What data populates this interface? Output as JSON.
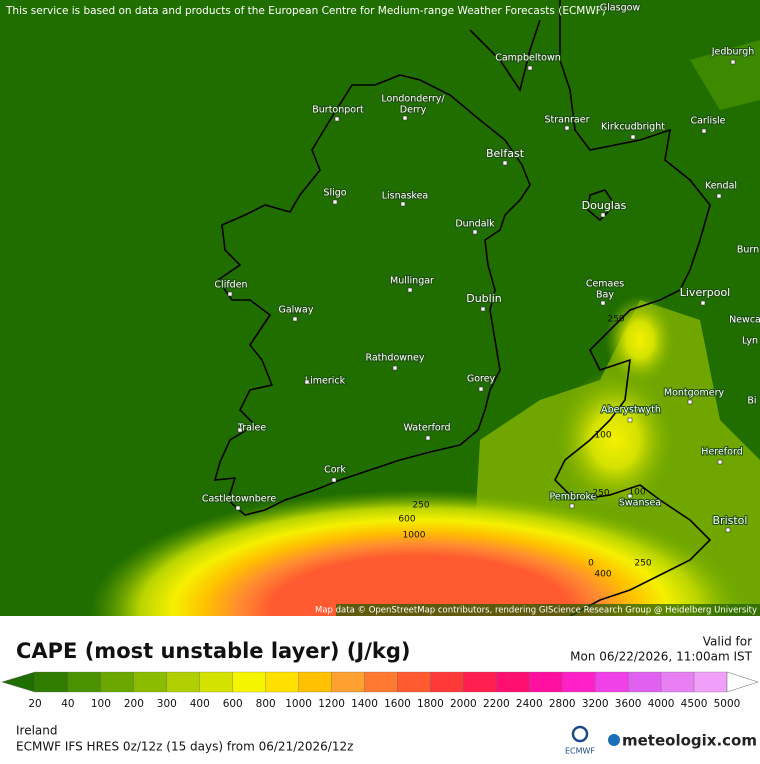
{
  "header": {
    "notice": "This service is based on data and products of the European Centre for Medium-range Weather Forecasts (ECMWF)"
  },
  "map": {
    "attribution": "Map data © OpenStreetMap contributors, rendering GIScience Research Group @ Heidelberg University",
    "cities": [
      "Glasgow",
      "Campbeltown",
      "Jedburgh",
      "Londonderry/",
      "Derry",
      "Burtonport",
      "Stranraer",
      "Kirkcudbright",
      "Carlisle",
      "Belfast",
      "Sligo",
      "Lisnaskea",
      "Kendal",
      "Douglas",
      "Dundalk",
      "Burn",
      "Clifden",
      "Mullingar",
      "Cemaes",
      "Bay",
      "Liverpool",
      "Galway",
      "Dublin",
      "Newca",
      "Lyn",
      "Rathdowney",
      "Limerick",
      "Gorey",
      "Montgomery",
      "Bi",
      "Aberystwyth",
      "Tralee",
      "Waterford",
      "Hereford",
      "Cork",
      "Pembroke",
      "Swansea",
      "Castletownbere",
      "Bristol"
    ],
    "contour_labels": [
      "250",
      "100",
      "100",
      "250",
      "250",
      "600",
      "1000",
      "0",
      "400",
      "250"
    ]
  },
  "panel": {
    "title": "CAPE (most unstable layer) (J/kg)",
    "valid_label": "Valid for",
    "valid_time": "Mon 06/22/2026, 11:00am IST",
    "region": "Ireland",
    "model_run": "ECMWF IFS HRES 0z/12z (15 days) from 06/21/2026/12z",
    "logo_ecmwf": "ECMWF",
    "logo_meteologix": "meteologix.com",
    "scale_labels": [
      20,
      40,
      100,
      200,
      300,
      400,
      600,
      800,
      1000,
      1200,
      1400,
      1600,
      1800,
      2000,
      2200,
      2400,
      2800,
      3200,
      3600,
      4000,
      4500,
      5000
    ],
    "scale_colors": [
      "#2e7d00",
      "#4a9200",
      "#6aa800",
      "#8cbc00",
      "#b0cf00",
      "#d4e200",
      "#f5f500",
      "#ffe000",
      "#ffc000",
      "#ffa030",
      "#ff7a30",
      "#ff5a30",
      "#ff3838",
      "#ff2050",
      "#ff1070",
      "#ff10a0",
      "#ff20c8",
      "#f040e8",
      "#e060f0",
      "#e880f4",
      "#f0a0f8"
    ],
    "scale_low_color": "#1f6e00",
    "scale_high_color": "#ffffff"
  }
}
